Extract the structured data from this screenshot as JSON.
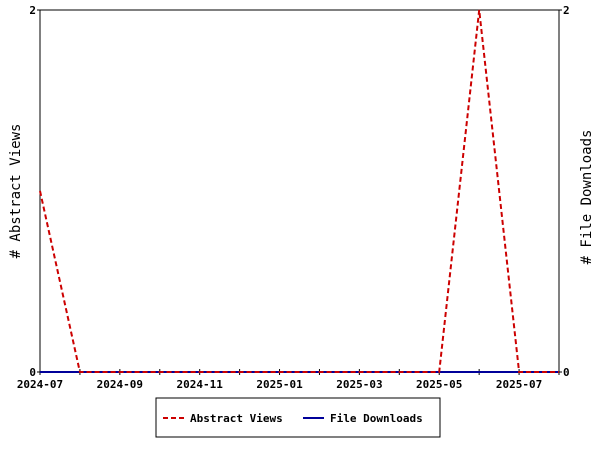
{
  "chart_data": {
    "type": "line",
    "x": [
      "2024-07",
      "2024-08",
      "2024-09",
      "2024-10",
      "2024-11",
      "2024-12",
      "2025-01",
      "2025-02",
      "2025-03",
      "2025-04",
      "2025-05",
      "2025-06",
      "2025-07",
      "2025-08"
    ],
    "x_tick_labels": [
      "2024-07",
      "2024-09",
      "2024-11",
      "2025-01",
      "2025-03",
      "2025-05",
      "2025-07"
    ],
    "series": [
      {
        "name": "Abstract Views",
        "axis": "left",
        "color": "#cc0000",
        "style": "dashed",
        "values": [
          1,
          0,
          0,
          0,
          0,
          0,
          0,
          0,
          0,
          0,
          0,
          2,
          0,
          0
        ]
      },
      {
        "name": "File Downloads",
        "axis": "right",
        "color": "#000099",
        "style": "solid",
        "values": [
          0,
          0,
          0,
          0,
          0,
          0,
          0,
          0,
          0,
          0,
          0,
          0,
          0,
          0
        ]
      }
    ],
    "ylabel_left": "# Abstract Views",
    "ylabel_right": "# File Downloads",
    "ylim_left": [
      0,
      2
    ],
    "ylim_right": [
      0,
      2
    ],
    "y_tick_labels_left": [
      "0",
      "2"
    ],
    "y_tick_labels_right": [
      "0",
      "2"
    ],
    "grid": false,
    "legend_position": "bottom"
  }
}
